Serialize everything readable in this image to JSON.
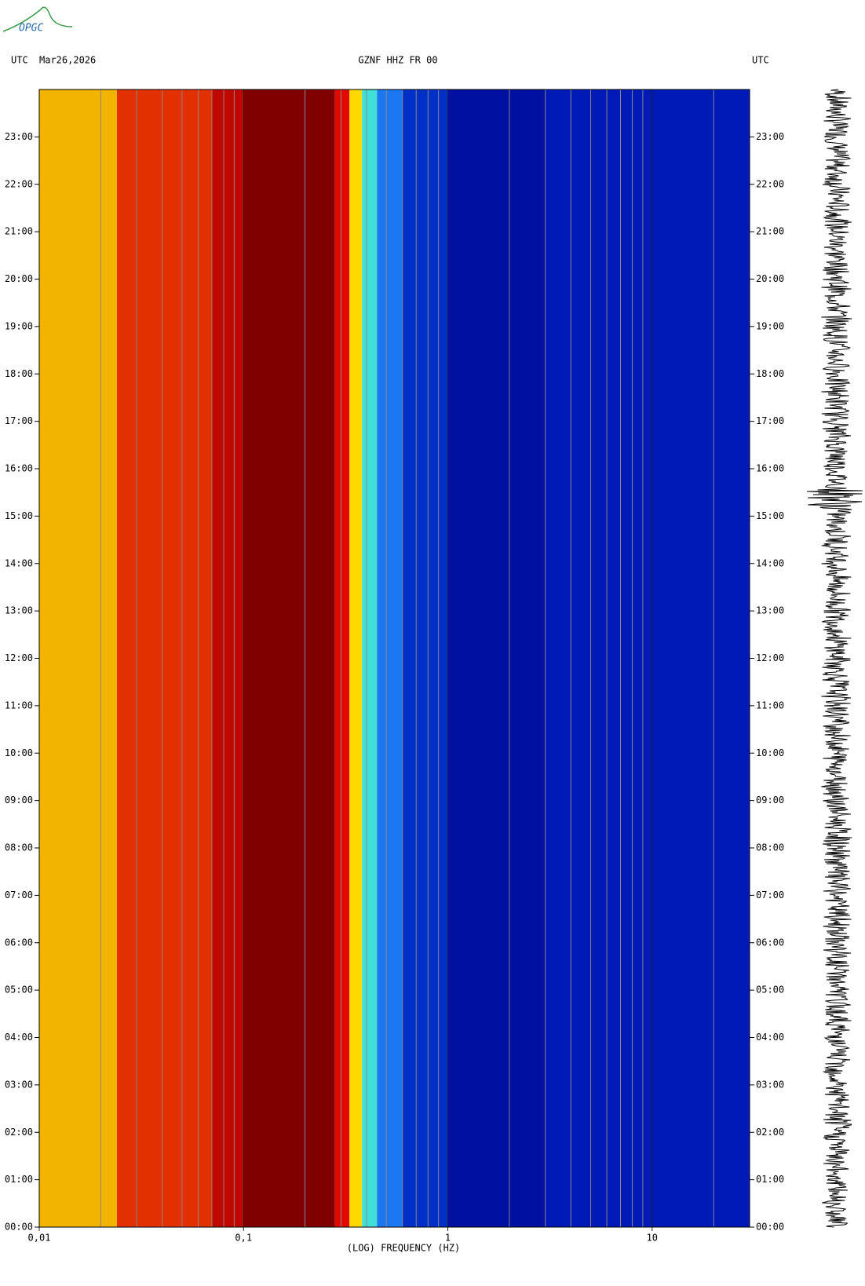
{
  "logo": "OPGC",
  "chart_data": {
    "type": "spectrogram",
    "title": "GZNF HHZ FR 00",
    "date": "Mar26,2026",
    "left_label": "UTC",
    "right_label": "UTC",
    "x_label": "(LOG) FREQUENCY (HZ)",
    "log_x": true,
    "xlim": [
      0.01,
      30
    ],
    "xticks": [
      {
        "value": 0.01,
        "label": "0,01"
      },
      {
        "value": 0.1,
        "label": "0,1"
      },
      1,
      10
    ],
    "xgrid": [
      0.02,
      0.03,
      0.04,
      0.05,
      0.06,
      0.07,
      0.08,
      0.09,
      0.2,
      0.3,
      0.4,
      0.5,
      0.6,
      0.7,
      0.8,
      0.9,
      2,
      3,
      4,
      5,
      6,
      7,
      8,
      9,
      20
    ],
    "ylim": [
      0,
      24
    ],
    "yticks": [
      {
        "value": 0,
        "label": "00:00"
      },
      {
        "value": 1,
        "label": "01:00"
      },
      {
        "value": 2,
        "label": "02:00"
      },
      {
        "value": 3,
        "label": "03:00"
      },
      {
        "value": 4,
        "label": "04:00"
      },
      {
        "value": 5,
        "label": "05:00"
      },
      {
        "value": 6,
        "label": "06:00"
      },
      {
        "value": 7,
        "label": "07:00"
      },
      {
        "value": 8,
        "label": "08:00"
      },
      {
        "value": 9,
        "label": "09:00"
      },
      {
        "value": 10,
        "label": "10:00"
      },
      {
        "value": 11,
        "label": "11:00"
      },
      {
        "value": 12,
        "label": "12:00"
      },
      {
        "value": 13,
        "label": "13:00"
      },
      {
        "value": 14,
        "label": "14:00"
      },
      {
        "value": 15,
        "label": "15:00"
      },
      {
        "value": 16,
        "label": "16:00"
      },
      {
        "value": 17,
        "label": "17:00"
      },
      {
        "value": 18,
        "label": "18:00"
      },
      {
        "value": 19,
        "label": "19:00"
      },
      {
        "value": 20,
        "label": "20:00"
      },
      {
        "value": 21,
        "label": "21:00"
      },
      {
        "value": 22,
        "label": "22:00"
      },
      {
        "value": 23,
        "label": "23:00"
      }
    ],
    "bands": [
      {
        "x0": 0.01,
        "x1": 0.024,
        "color": "#f2b400"
      },
      {
        "x0": 0.024,
        "x1": 0.07,
        "color": "#e23000"
      },
      {
        "x0": 0.07,
        "x1": 0.1,
        "color": "#c00800"
      },
      {
        "x0": 0.1,
        "x1": 0.28,
        "color": "#800000"
      },
      {
        "x0": 0.28,
        "x1": 0.33,
        "color": "#e00a00"
      },
      {
        "x0": 0.33,
        "x1": 0.38,
        "color": "#ffd800"
      },
      {
        "x0": 0.38,
        "x1": 0.45,
        "color": "#40e0d8"
      },
      {
        "x0": 0.45,
        "x1": 0.6,
        "color": "#1c78f0"
      },
      {
        "x0": 0.6,
        "x1": 1,
        "color": "#0030c8"
      },
      {
        "x0": 1,
        "x1": 3,
        "color": "#0010a0"
      },
      {
        "x0": 3,
        "x1": 30,
        "color": "#001ab8"
      }
    ]
  }
}
